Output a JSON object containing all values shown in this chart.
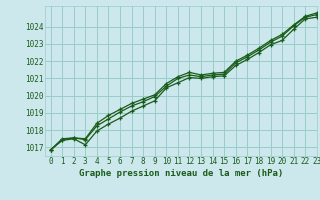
{
  "title": "Graphe pression niveau de la mer (hPa)",
  "bg_color": "#cce8ec",
  "grid_color": "#99cccc",
  "line_color": "#1a5c1a",
  "xlim": [
    -0.5,
    23
  ],
  "ylim": [
    1016.5,
    1025.2
  ],
  "yticks": [
    1017,
    1018,
    1019,
    1020,
    1021,
    1022,
    1023,
    1024
  ],
  "xticks": [
    0,
    1,
    2,
    3,
    4,
    5,
    6,
    7,
    8,
    9,
    10,
    11,
    12,
    13,
    14,
    15,
    16,
    17,
    18,
    19,
    20,
    21,
    22,
    23
  ],
  "series1": [
    1016.85,
    1017.4,
    1017.5,
    1017.15,
    1017.95,
    1018.35,
    1018.7,
    1019.1,
    1019.4,
    1019.7,
    1020.45,
    1020.75,
    1021.05,
    1021.0,
    1021.1,
    1021.15,
    1021.75,
    1022.1,
    1022.5,
    1022.95,
    1023.2,
    1023.85,
    1024.45,
    1024.55
  ],
  "series2": [
    1016.85,
    1017.45,
    1017.55,
    1017.45,
    1018.25,
    1018.65,
    1019.05,
    1019.4,
    1019.65,
    1019.95,
    1020.55,
    1021.0,
    1021.2,
    1021.1,
    1021.2,
    1021.25,
    1021.9,
    1022.25,
    1022.65,
    1023.1,
    1023.45,
    1024.05,
    1024.55,
    1024.7
  ],
  "series3": [
    1016.85,
    1017.5,
    1017.55,
    1017.5,
    1018.4,
    1018.85,
    1019.2,
    1019.55,
    1019.8,
    1020.05,
    1020.7,
    1021.1,
    1021.35,
    1021.2,
    1021.3,
    1021.35,
    1022.0,
    1022.35,
    1022.75,
    1023.2,
    1023.55,
    1024.1,
    1024.6,
    1024.8
  ],
  "tick_fontsize": 5.5,
  "label_fontsize": 6.5,
  "linewidth": 0.9,
  "markersize": 3.5
}
